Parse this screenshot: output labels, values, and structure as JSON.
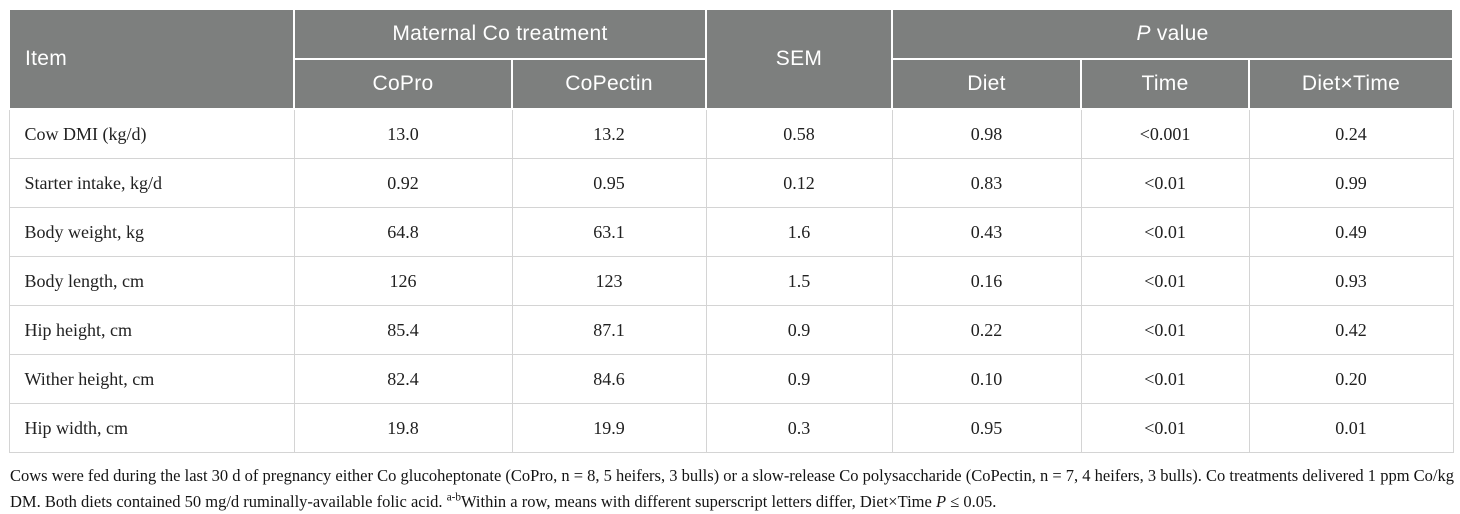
{
  "table": {
    "header": {
      "item_label": "Item",
      "maternal_group_label": "Maternal Co treatment",
      "sub_columns": [
        "CoPro",
        "CoPectin"
      ],
      "sem_label": "SEM",
      "p_value_italic": "P",
      "p_value_rest": " value",
      "p_columns": [
        "Diet",
        "Time",
        "Diet×Time"
      ]
    },
    "rows": [
      {
        "item": "Cow DMI (kg/d)",
        "copro": "13.0",
        "copectin": "13.2",
        "sem": "0.58",
        "diet": "0.98",
        "time": "<0.001",
        "diet_time": "0.24"
      },
      {
        "item": "Starter intake, kg/d",
        "copro": "0.92",
        "copectin": "0.95",
        "sem": "0.12",
        "diet": "0.83",
        "time": "<0.01",
        "diet_time": "0.99"
      },
      {
        "item": "Body weight, kg",
        "copro": "64.8",
        "copectin": "63.1",
        "sem": "1.6",
        "diet": "0.43",
        "time": "<0.01",
        "diet_time": "0.49"
      },
      {
        "item": "Body length, cm",
        "copro": "126",
        "copectin": "123",
        "sem": "1.5",
        "diet": "0.16",
        "time": "<0.01",
        "diet_time": "0.93"
      },
      {
        "item": "Hip height, cm",
        "copro": "85.4",
        "copectin": "87.1",
        "sem": "0.9",
        "diet": "0.22",
        "time": "<0.01",
        "diet_time": "0.42"
      },
      {
        "item": "Wither height, cm",
        "copro": "82.4",
        "copectin": "84.6",
        "sem": "0.9",
        "diet": "0.10",
        "time": "<0.01",
        "diet_time": "0.20"
      },
      {
        "item": "Hip width, cm",
        "copro": "19.8",
        "copectin": "19.9",
        "sem": "0.3",
        "diet": "0.95",
        "time": "<0.01",
        "diet_time": "0.01"
      }
    ]
  },
  "footnote": {
    "part1": "Cows were fed during the last 30 d of pregnancy either Co glucoheptonate (CoPro, n = 8, 5 heifers, 3 bulls) or a slow-release Co polysaccharide (CoPectin, n = 7, 4 heifers, 3 bulls). Co treatments delivered 1 ppm Co/kg DM. Both diets contained 50 mg/d ruminally-available folic acid. ",
    "superscript": "a-b",
    "part2": "Within a row, means with different superscript letters differ, Diet×Time ",
    "p_italic": "P",
    "part3": " ≤ 0.05."
  },
  "colors": {
    "header_bg": "#7d7f7e",
    "header_text": "#ffffff",
    "body_text": "#212121",
    "grid_line": "#d4d4d4"
  }
}
